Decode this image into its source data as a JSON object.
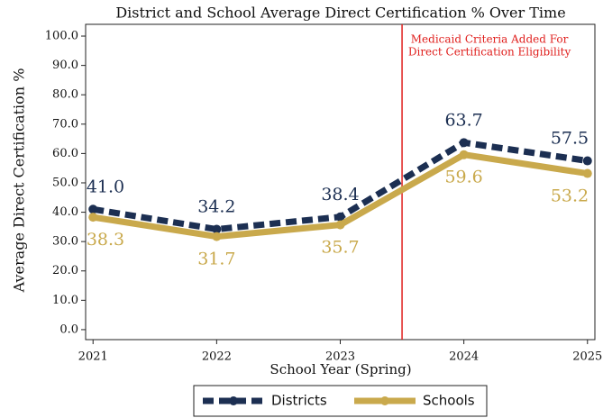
{
  "chart_data": {
    "type": "line",
    "title": "District and School Average Direct Certification % Over Time",
    "x_label": "School Year (Spring)",
    "y_label": "Average Direct Certification %",
    "x": [
      2021,
      2022,
      2023,
      2024,
      2025
    ],
    "xlim": [
      2020.94,
      2025.06
    ],
    "xticks": [
      2021,
      2022,
      2023,
      2024,
      2025
    ],
    "ylim": [
      -3.4,
      104
    ],
    "yticks": [
      {
        "value": 0,
        "label": "0.0"
      },
      {
        "value": 10,
        "label": "10.0"
      },
      {
        "value": 20,
        "label": "20.0"
      },
      {
        "value": 30,
        "label": "30.0"
      },
      {
        "value": 40,
        "label": "40.0"
      },
      {
        "value": 50,
        "label": "50.0"
      },
      {
        "value": 60,
        "label": "60.0"
      },
      {
        "value": 70,
        "label": "70.0"
      },
      {
        "value": 80,
        "label": "80.0"
      },
      {
        "value": 90,
        "label": "90.0"
      },
      {
        "value": 100,
        "label": "100.0"
      }
    ],
    "series": [
      {
        "name": "Districts",
        "color": "#1c2f52",
        "dashed": true,
        "values": [
          41.0,
          34.2,
          38.4,
          63.7,
          57.5
        ],
        "value_labels": [
          "41.0",
          "34.2",
          "38.4",
          "63.7",
          "57.5"
        ],
        "label_side": "above"
      },
      {
        "name": "Schools",
        "color": "#c9a94c",
        "dashed": false,
        "values": [
          38.3,
          31.7,
          35.7,
          59.6,
          53.2
        ],
        "value_labels": [
          "38.3",
          "31.7",
          "35.7",
          "59.6",
          "53.2"
        ],
        "label_side": "below"
      }
    ],
    "annotation": {
      "x": 2023.5,
      "color": "#e0201e",
      "lines": [
        "Medicaid Criteria Added For",
        "Direct Certification Eligibility"
      ]
    },
    "legend": "bottom"
  }
}
